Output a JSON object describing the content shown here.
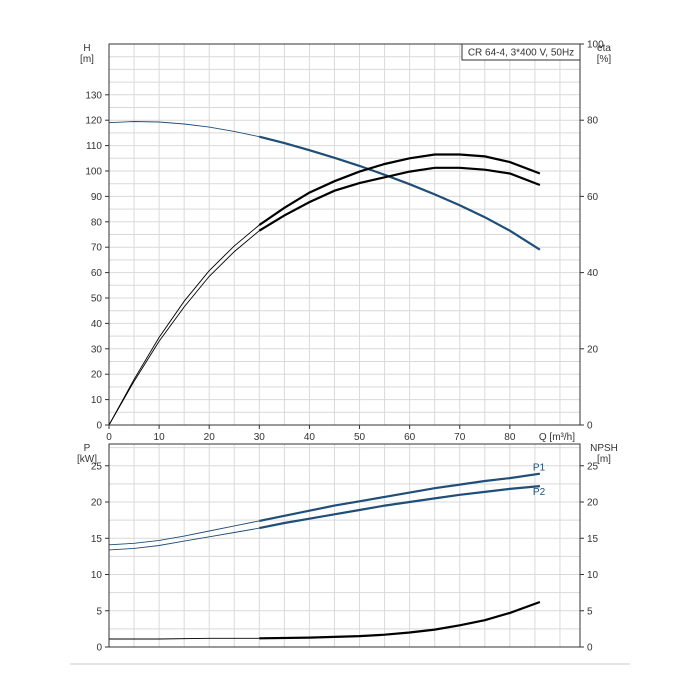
{
  "chart_data": [
    {
      "type": "line",
      "title": "CR 64-4, 3*400 V, 50Hz",
      "xlabel": "Q [m³/h]",
      "ylabel": "H\n[m]",
      "ylabel_right": "eta\n[%]",
      "xlim": [
        0,
        94
      ],
      "ylim": [
        0,
        150
      ],
      "ylim_right": [
        0,
        100
      ],
      "x_ticks": [
        0,
        10,
        20,
        30,
        40,
        50,
        60,
        70,
        80
      ],
      "y_ticks": [
        0,
        10,
        20,
        30,
        40,
        50,
        60,
        70,
        80,
        90,
        100,
        110,
        120,
        130
      ],
      "y_ticks_right": [
        0,
        20,
        40,
        60,
        80,
        100
      ],
      "grid": true,
      "operating_range_start": 30,
      "series": [
        {
          "axis": "left",
          "color": "#1f4e79",
          "x": [
            0,
            5,
            10,
            15,
            20,
            25,
            30,
            35,
            40,
            45,
            50,
            55,
            60,
            65,
            70,
            75,
            80,
            86
          ],
          "values": [
            119,
            119.5,
            119.3,
            118.5,
            117.3,
            115.6,
            113.5,
            111,
            108.2,
            105.2,
            102,
            98.5,
            94.8,
            90.8,
            86.5,
            81.8,
            76.5,
            69
          ]
        },
        {
          "axis": "right",
          "color": "#000000",
          "x": [
            0,
            5,
            10,
            15,
            20,
            25,
            30,
            35,
            40,
            45,
            50,
            55,
            60,
            65,
            70,
            75,
            80,
            86
          ],
          "values": [
            0,
            12,
            23,
            32.5,
            40.5,
            47,
            52.5,
            57,
            61,
            64,
            66.5,
            68.5,
            70,
            71,
            71,
            70.5,
            69,
            66
          ]
        },
        {
          "axis": "right",
          "color": "#000000",
          "x": [
            0,
            5,
            10,
            15,
            20,
            25,
            30,
            35,
            40,
            45,
            50,
            55,
            60,
            65,
            70,
            75,
            80,
            86
          ],
          "values": [
            0,
            11.5,
            22,
            31,
            39,
            45.5,
            51,
            55,
            58.5,
            61.5,
            63.5,
            65,
            66.5,
            67.5,
            67.5,
            67,
            66,
            63
          ]
        }
      ]
    },
    {
      "type": "line",
      "xlabel": "",
      "ylabel": "P\n[kW]",
      "ylabel_right": "NPSH\n[m]",
      "xlim": [
        0,
        94
      ],
      "ylim": [
        0,
        28
      ],
      "ylim_right": [
        0,
        28
      ],
      "y_ticks": [
        0,
        5,
        10,
        15,
        20,
        25
      ],
      "y_ticks_right": [
        0,
        5,
        10,
        15,
        20,
        25
      ],
      "grid": true,
      "operating_range_start": 30,
      "series": [
        {
          "name": "P1",
          "axis": "left",
          "color": "#1f4e79",
          "x": [
            0,
            5,
            10,
            15,
            20,
            25,
            30,
            35,
            40,
            45,
            50,
            55,
            60,
            65,
            70,
            75,
            80,
            86
          ],
          "values": [
            14.1,
            14.3,
            14.7,
            15.3,
            16.0,
            16.7,
            17.4,
            18.1,
            18.8,
            19.5,
            20.1,
            20.7,
            21.3,
            21.9,
            22.4,
            22.9,
            23.3,
            23.9
          ]
        },
        {
          "name": "P2",
          "axis": "left",
          "color": "#1f4e79",
          "x": [
            0,
            5,
            10,
            15,
            20,
            25,
            30,
            35,
            40,
            45,
            50,
            55,
            60,
            65,
            70,
            75,
            80,
            86
          ],
          "values": [
            13.4,
            13.6,
            14.0,
            14.6,
            15.2,
            15.8,
            16.4,
            17.1,
            17.7,
            18.3,
            18.9,
            19.5,
            20.0,
            20.5,
            21.0,
            21.4,
            21.8,
            22.2
          ]
        },
        {
          "axis": "right",
          "color": "#000000",
          "x": [
            0,
            10,
            20,
            30,
            40,
            50,
            55,
            60,
            65,
            70,
            75,
            80,
            86
          ],
          "values": [
            1.1,
            1.1,
            1.2,
            1.2,
            1.3,
            1.5,
            1.7,
            2.0,
            2.4,
            3.0,
            3.7,
            4.7,
            6.2
          ]
        }
      ]
    }
  ]
}
